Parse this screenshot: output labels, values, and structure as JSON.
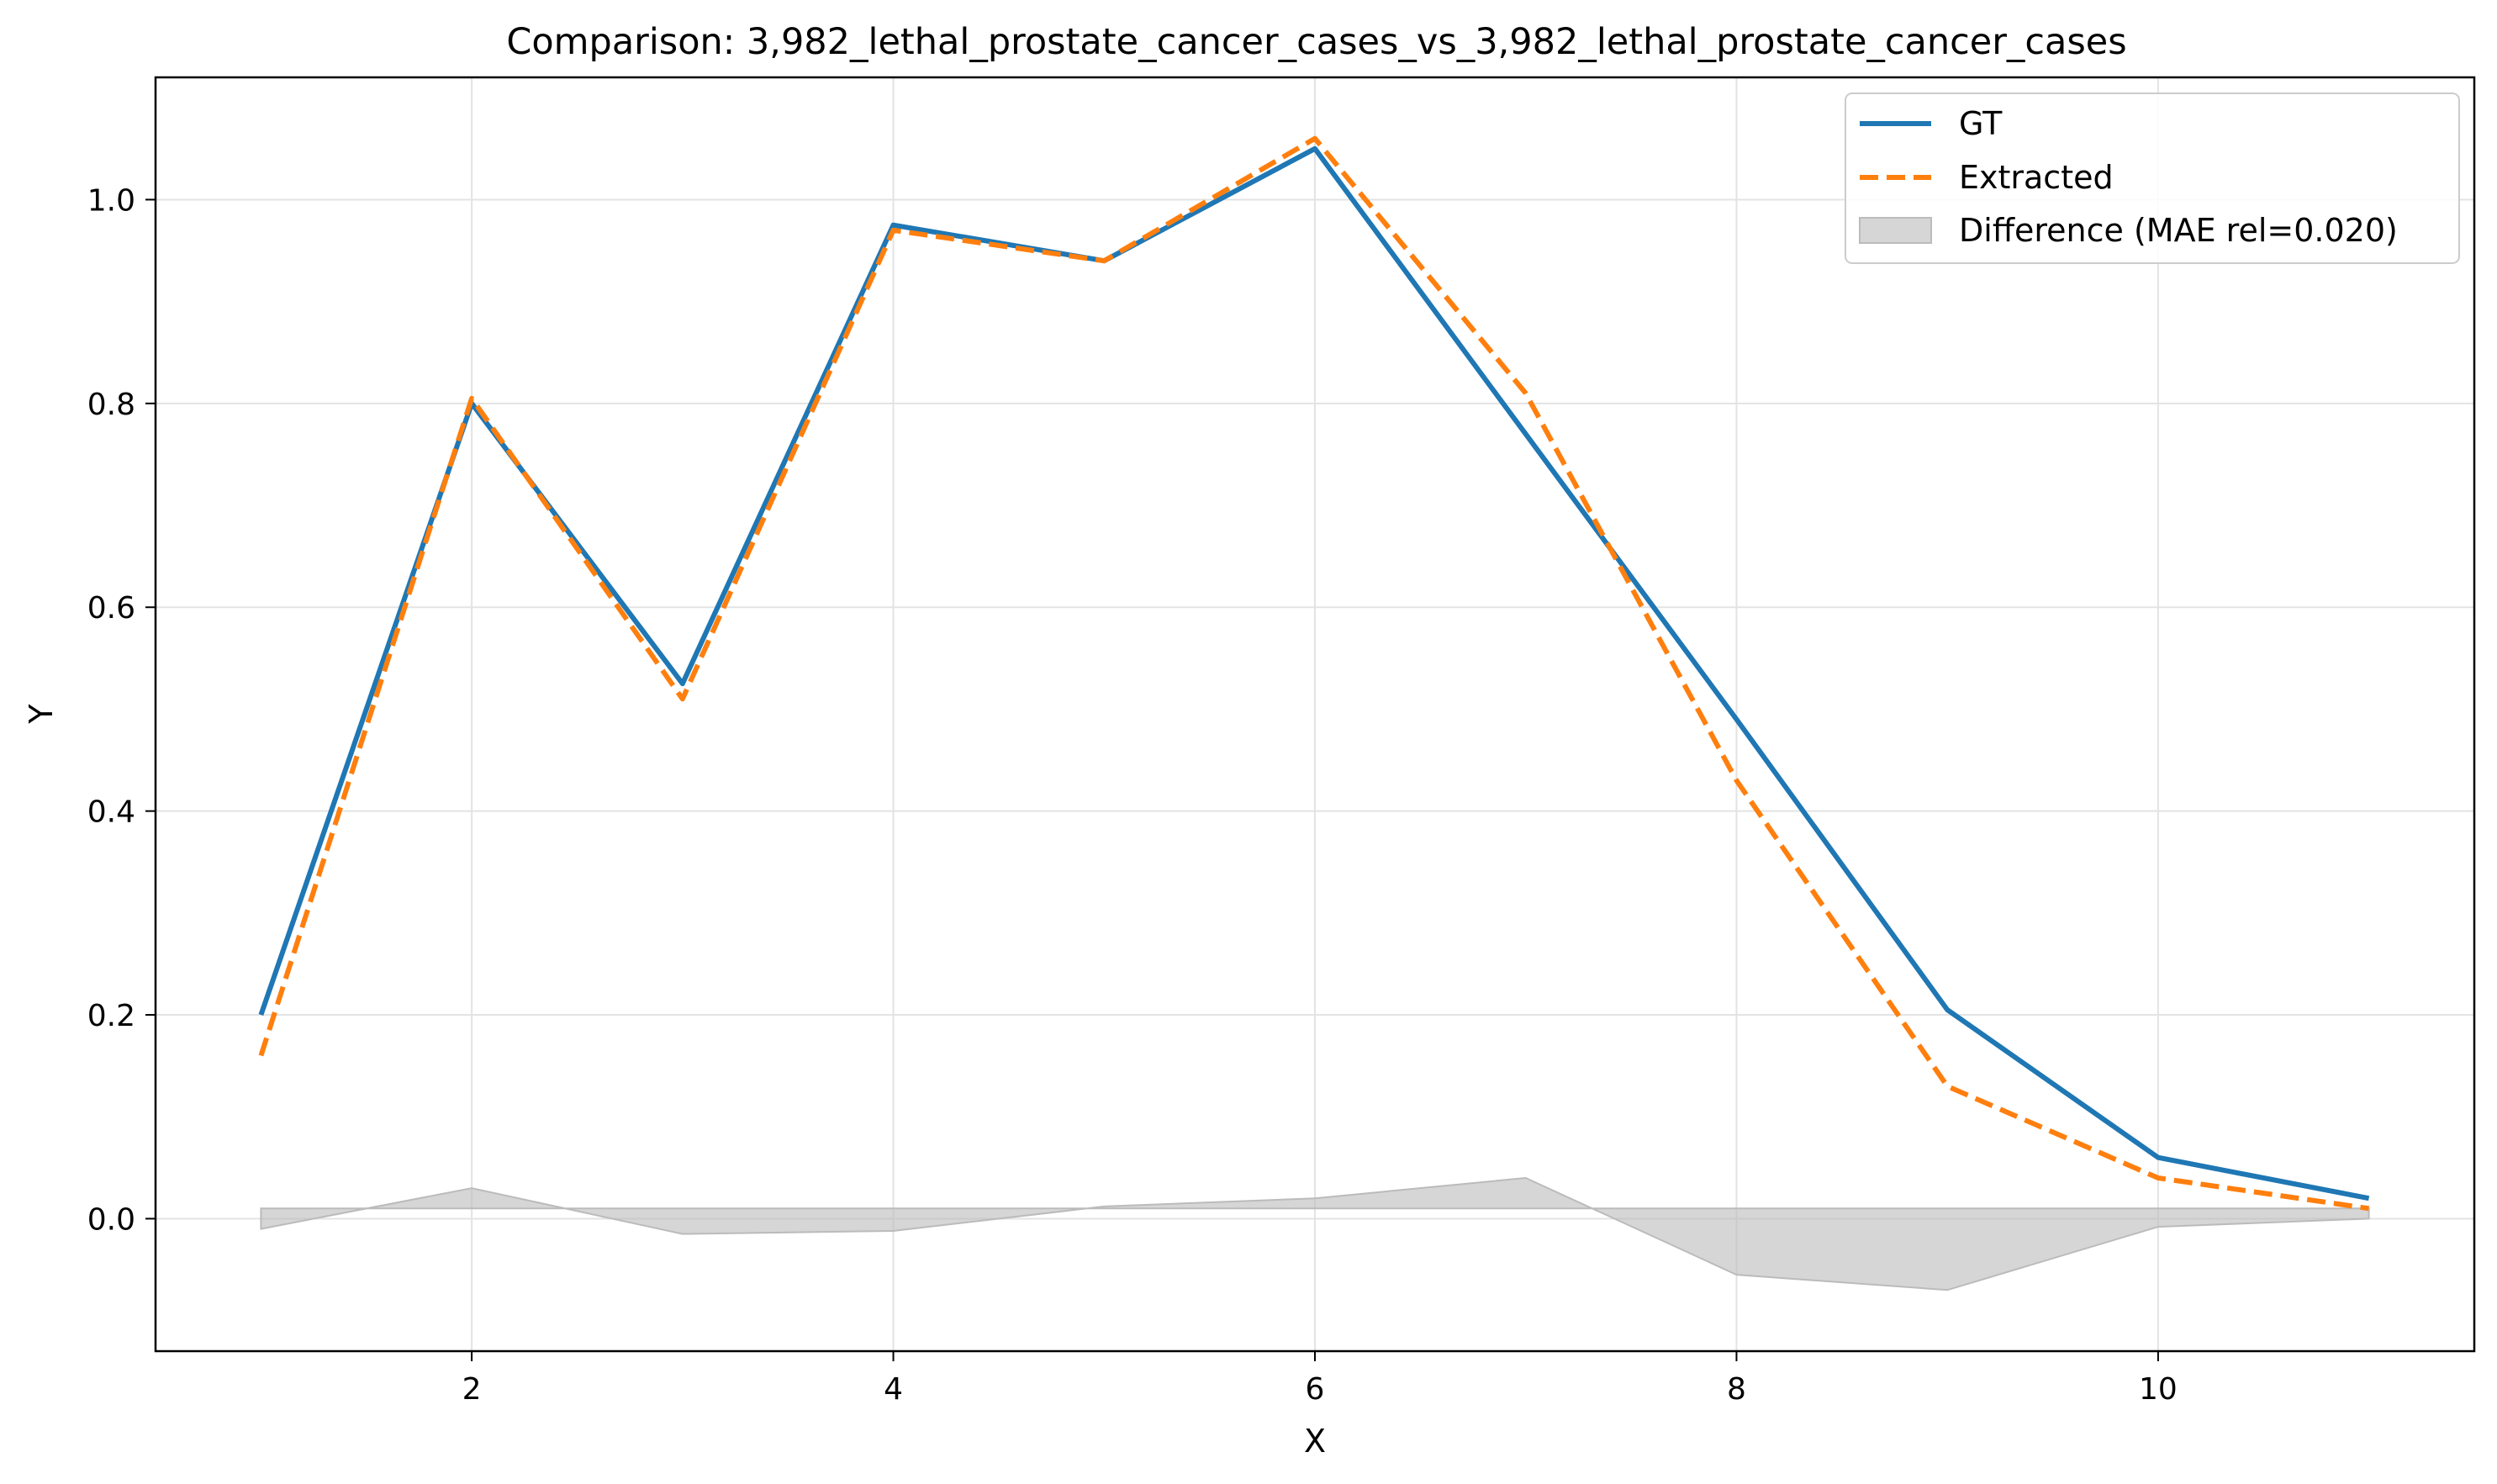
{
  "chart_data": {
    "type": "line",
    "title": "Comparison: 3,982_lethal_prostate_cancer_cases_vs_3,982_lethal_prostate_cancer_cases",
    "xlabel": "X",
    "ylabel": "Y",
    "xlim": [
      0.5,
      11.5
    ],
    "ylim": [
      -0.13,
      1.12
    ],
    "xticks": [
      2,
      4,
      6,
      8,
      10
    ],
    "yticks": [
      0.0,
      0.2,
      0.4,
      0.6,
      0.8,
      1.0
    ],
    "xtick_labels": [
      "2",
      "4",
      "6",
      "8",
      "10"
    ],
    "ytick_labels": [
      "0.0",
      "0.2",
      "0.4",
      "0.6",
      "0.8",
      "1.0"
    ],
    "grid": true,
    "legend_position": "top-right",
    "x": [
      1,
      2,
      3,
      4,
      5,
      6,
      7,
      8,
      9,
      10,
      11
    ],
    "series": [
      {
        "name": "GT",
        "color": "#1f77b4",
        "style": "solid",
        "values": [
          0.2,
          0.8,
          0.525,
          0.975,
          0.94,
          1.05,
          0.77,
          0.49,
          0.205,
          0.06,
          0.02
        ]
      },
      {
        "name": "Extracted",
        "color": "#ff7f0e",
        "style": "dashed",
        "values": [
          0.16,
          0.805,
          0.51,
          0.97,
          0.94,
          1.06,
          0.81,
          0.43,
          0.13,
          0.04,
          0.01
        ]
      }
    ],
    "difference": {
      "name": "Difference (MAE rel=0.020)",
      "color": "#bbbbbb",
      "baseline": 0.01,
      "values": [
        -0.01,
        0.03,
        -0.015,
        -0.012,
        0.012,
        0.02,
        0.04,
        -0.055,
        -0.07,
        -0.008,
        0.0
      ]
    }
  }
}
